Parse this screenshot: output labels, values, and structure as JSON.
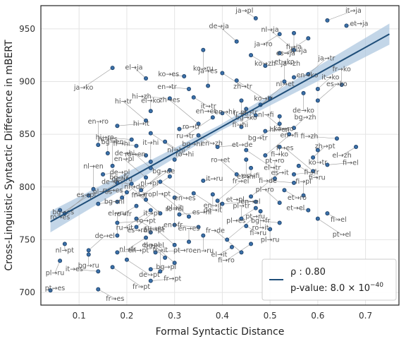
{
  "chart_data": {
    "type": "scatter",
    "xlabel": "Formal Syntactic Distance",
    "ylabel": "Cross-Linguistic Syntactic Difference in mBERT",
    "xlim": [
      0.02,
      0.77
    ],
    "ylim": [
      688,
      972
    ],
    "x_ticks": [
      0.1,
      0.2,
      0.3,
      0.4,
      0.5,
      0.6,
      0.7
    ],
    "x_tick_labels": [
      "0.1",
      "0.2",
      "0.3",
      "0.4",
      "0.5",
      "0.6",
      "0.7"
    ],
    "y_ticks": [
      700,
      750,
      800,
      850,
      900,
      950
    ],
    "y_tick_labels": [
      "700",
      "750",
      "800",
      "850",
      "900",
      "950"
    ],
    "grid": true,
    "legend": {
      "placement": "bottom-right",
      "line1": "ρ : 0.80",
      "line2_prefix": "p-value: 8.0 × 10",
      "line2_exp": "−40"
    },
    "colors": {
      "point_fill": "#3a6fa8",
      "point_edge": "#1b3d63",
      "fit_line": "#1f4e79",
      "confidence_band": "#a9c4de",
      "leader_line": "#9a9a9a",
      "grid": "#e4e4e4",
      "frame": "#222222"
    },
    "fit": {
      "x": [
        0.04,
        0.75
      ],
      "y": [
        767,
        945
      ]
    },
    "band_halfwidth": [
      10,
      3,
      10
    ],
    "points": [
      {
        "label": "ja→pl",
        "x": 0.47,
        "y": 960
      },
      {
        "label": "ja→ro",
        "x": 0.52,
        "y": 945
      },
      {
        "label": "fi→ja",
        "x": 0.55,
        "y": 946
      },
      {
        "label": "it→ja",
        "x": 0.62,
        "y": 958
      },
      {
        "label": "et→ja",
        "x": 0.66,
        "y": 953
      },
      {
        "label": "de→ja",
        "x": 0.43,
        "y": 938
      },
      {
        "label": "es→ja",
        "x": 0.58,
        "y": 941
      },
      {
        "label": "ko→ru",
        "x": 0.36,
        "y": 930
      },
      {
        "label": "ko→zh",
        "x": 0.46,
        "y": 925
      },
      {
        "label": "fr→ja",
        "x": 0.52,
        "y": 927
      },
      {
        "label": "nl→ja",
        "x": 0.55,
        "y": 930
      },
      {
        "label": "ja→ko",
        "x": 0.17,
        "y": 913
      },
      {
        "label": "ko→es",
        "x": 0.32,
        "y": 905
      },
      {
        "label": "zh→tr",
        "x": 0.4,
        "y": 908
      },
      {
        "label": "ja→zh",
        "x": 0.49,
        "y": 915
      },
      {
        "label": "el→ja",
        "x": 0.24,
        "y": 903
      },
      {
        "label": "ja→es",
        "x": 0.37,
        "y": 896
      },
      {
        "label": "en→tr",
        "x": 0.33,
        "y": 893
      },
      {
        "label": "ko→tr",
        "x": 0.43,
        "y": 901
      },
      {
        "label": "en→ko",
        "x": 0.55,
        "y": 904
      },
      {
        "label": "ja→tr",
        "x": 0.58,
        "y": 907
      },
      {
        "label": "et→ko",
        "x": 0.53,
        "y": 900
      },
      {
        "label": "hi→zh",
        "x": 0.29,
        "y": 884
      },
      {
        "label": "it→tr",
        "x": 0.34,
        "y": 885
      },
      {
        "label": "fr→tr",
        "x": 0.44,
        "y": 882
      },
      {
        "label": "nl→et",
        "x": 0.48,
        "y": 878
      },
      {
        "label": "el→ko",
        "x": 0.25,
        "y": 872
      },
      {
        "label": "en→et",
        "x": 0.4,
        "y": 870
      },
      {
        "label": "pl→tr",
        "x": 0.5,
        "y": 884
      },
      {
        "label": "de→ko",
        "x": 0.57,
        "y": 889
      },
      {
        "label": "it→ko",
        "x": 0.6,
        "y": 893
      },
      {
        "label": "fr→ko",
        "x": 0.65,
        "y": 897
      },
      {
        "label": "hi→tr",
        "x": 0.24,
        "y": 863
      },
      {
        "label": "ru→tr",
        "x": 0.38,
        "y": 866
      },
      {
        "label": "bg→ko",
        "x": 0.45,
        "y": 874
      },
      {
        "label": "es→ko",
        "x": 0.6,
        "y": 882
      },
      {
        "label": "hi→it",
        "x": 0.18,
        "y": 858
      },
      {
        "label": "zh→es",
        "x": 0.35,
        "y": 860
      },
      {
        "label": "fi→hi",
        "x": 0.47,
        "y": 868
      },
      {
        "label": "hi→en",
        "x": 0.52,
        "y": 867
      },
      {
        "label": "nl→hi",
        "x": 0.25,
        "y": 851
      },
      {
        "label": "ro→tr",
        "x": 0.31,
        "y": 855
      },
      {
        "label": "en→hi",
        "x": 0.44,
        "y": 857
      },
      {
        "label": "bg→tr",
        "x": 0.52,
        "y": 860
      },
      {
        "label": "hi→ro",
        "x": 0.21,
        "y": 845
      },
      {
        "label": "en→zh",
        "x": 0.35,
        "y": 849
      },
      {
        "label": "ko→ro",
        "x": 0.49,
        "y": 853
      },
      {
        "label": "nl→fi",
        "x": 0.54,
        "y": 850
      },
      {
        "label": "en→ro",
        "x": 0.14,
        "y": 840
      },
      {
        "label": "fr→hi",
        "x": 0.22,
        "y": 839
      },
      {
        "label": "ro→hi",
        "x": 0.28,
        "y": 843
      },
      {
        "label": "et→de",
        "x": 0.39,
        "y": 838
      },
      {
        "label": "bg→zh",
        "x": 0.55,
        "y": 856
      },
      {
        "label": "hi→es",
        "x": 0.16,
        "y": 832
      },
      {
        "label": "de→hi",
        "x": 0.24,
        "y": 830
      },
      {
        "label": "el→tr",
        "x": 0.45,
        "y": 835
      },
      {
        "label": "fi→ko",
        "x": 0.52,
        "y": 838
      },
      {
        "label": "bg→hi",
        "x": 0.3,
        "y": 826
      },
      {
        "label": "it→hi",
        "x": 0.25,
        "y": 824
      },
      {
        "label": "fi→zh",
        "x": 0.64,
        "y": 846
      },
      {
        "label": "el→zh",
        "x": 0.68,
        "y": 838
      },
      {
        "label": "ko→tr",
        "x": 0.6,
        "y": 835
      },
      {
        "label": "en→fi",
        "x": 0.49,
        "y": 830
      },
      {
        "label": "bg→en",
        "x": 0.17,
        "y": 820
      },
      {
        "label": "ro→en",
        "x": 0.25,
        "y": 818
      },
      {
        "label": "nl→pl",
        "x": 0.29,
        "y": 816
      },
      {
        "label": "et→hi",
        "x": 0.45,
        "y": 826
      },
      {
        "label": "zh→pt",
        "x": 0.59,
        "y": 828
      },
      {
        "label": "de→pl",
        "x": 0.15,
        "y": 812
      },
      {
        "label": "en→pl",
        "x": 0.24,
        "y": 809
      },
      {
        "label": "nl→ro",
        "x": 0.29,
        "y": 810
      },
      {
        "label": "es→fi",
        "x": 0.46,
        "y": 818
      },
      {
        "label": "fi→ru",
        "x": 0.56,
        "y": 820
      },
      {
        "label": "fi→el",
        "x": 0.62,
        "y": 821
      },
      {
        "label": "fi→es",
        "x": 0.59,
        "y": 815
      },
      {
        "label": "nl→es",
        "x": 0.18,
        "y": 804
      },
      {
        "label": "de→ro",
        "x": 0.21,
        "y": 803
      },
      {
        "label": "en→es",
        "x": 0.27,
        "y": 805
      },
      {
        "label": "it→ru",
        "x": 0.36,
        "y": 806
      },
      {
        "label": "ro→et",
        "x": 0.43,
        "y": 812
      },
      {
        "label": "pt→ro",
        "x": 0.51,
        "y": 808
      },
      {
        "label": "fi→de",
        "x": 0.55,
        "y": 804
      },
      {
        "label": "et→ro",
        "x": 0.53,
        "y": 797
      },
      {
        "label": "fi→fr",
        "x": 0.55,
        "y": 812
      },
      {
        "label": "bg→de",
        "x": 0.23,
        "y": 797
      },
      {
        "label": "nl→en",
        "x": 0.13,
        "y": 798
      },
      {
        "label": "ru→es",
        "x": 0.2,
        "y": 795
      },
      {
        "label": "en→it",
        "x": 0.34,
        "y": 794
      },
      {
        "label": "de→it",
        "x": 0.38,
        "y": 793
      },
      {
        "label": "es→it",
        "x": 0.46,
        "y": 791
      },
      {
        "label": "fi→pl",
        "x": 0.57,
        "y": 792
      },
      {
        "label": "et→pl",
        "x": 0.47,
        "y": 786
      },
      {
        "label": "bg→es",
        "x": 0.12,
        "y": 792
      },
      {
        "label": "ro→es",
        "x": 0.06,
        "y": 778
      },
      {
        "label": "nl→de",
        "x": 0.18,
        "y": 786
      },
      {
        "label": "de→ru",
        "x": 0.19,
        "y": 790
      },
      {
        "label": "bg→fr",
        "x": 0.24,
        "y": 788
      },
      {
        "label": "ro→fr",
        "x": 0.22,
        "y": 782
      },
      {
        "label": "ro→el",
        "x": 0.3,
        "y": 790
      },
      {
        "label": "fr→el",
        "x": 0.39,
        "y": 787
      },
      {
        "label": "en→el",
        "x": 0.4,
        "y": 784
      },
      {
        "label": "pl→ro",
        "x": 0.52,
        "y": 785
      },
      {
        "label": "pl→es",
        "x": 0.47,
        "y": 780
      },
      {
        "label": "ro→it",
        "x": 0.48,
        "y": 777
      },
      {
        "label": "fi→el",
        "x": 0.62,
        "y": 775
      },
      {
        "label": "bg→nl",
        "x": 0.14,
        "y": 784
      },
      {
        "label": "fr→it",
        "x": 0.27,
        "y": 775
      },
      {
        "label": "ru→it",
        "x": 0.25,
        "y": 778
      },
      {
        "label": "et→el",
        "x": 0.58,
        "y": 778
      },
      {
        "label": "bg→pt",
        "x": 0.22,
        "y": 770
      },
      {
        "label": "es→nl",
        "x": 0.31,
        "y": 774
      },
      {
        "label": "pl→pt",
        "x": 0.33,
        "y": 772
      },
      {
        "label": "pl→tr",
        "x": 0.44,
        "y": 770
      },
      {
        "label": "bg→fr",
        "x": 0.52,
        "y": 766
      },
      {
        "label": "pt→el",
        "x": 0.6,
        "y": 770
      },
      {
        "label": "ro→pt",
        "x": 0.18,
        "y": 766
      },
      {
        "label": "it→pt",
        "x": 0.22,
        "y": 762
      },
      {
        "label": "pl→it",
        "x": 0.3,
        "y": 764
      },
      {
        "label": "en→fr",
        "x": 0.35,
        "y": 762
      },
      {
        "label": "fi→ru",
        "x": 0.45,
        "y": 763
      },
      {
        "label": "pl→ru",
        "x": 0.5,
        "y": 760
      },
      {
        "label": "es→pt",
        "x": 0.07,
        "y": 775
      },
      {
        "label": "el→ru",
        "x": 0.18,
        "y": 754
      },
      {
        "label": "es→ru",
        "x": 0.25,
        "y": 757
      },
      {
        "label": "nl→fr",
        "x": 0.24,
        "y": 752
      },
      {
        "label": "en→ru",
        "x": 0.36,
        "y": 754
      },
      {
        "label": "pt→ru",
        "x": 0.41,
        "y": 750
      },
      {
        "label": "en→es",
        "x": 0.33,
        "y": 748
      },
      {
        "label": "ru→es",
        "x": 0.3,
        "y": 745
      },
      {
        "label": "fi→ro",
        "x": 0.46,
        "y": 746
      },
      {
        "label": "nl→pt",
        "x": 0.07,
        "y": 746
      },
      {
        "label": "de→el",
        "x": 0.12,
        "y": 740
      },
      {
        "label": "en→pt",
        "x": 0.18,
        "y": 738
      },
      {
        "label": "fr→de",
        "x": 0.44,
        "y": 738
      },
      {
        "label": "el→it",
        "x": 0.42,
        "y": 743
      },
      {
        "label": "bg→ru",
        "x": 0.12,
        "y": 736
      },
      {
        "label": "de→pt",
        "x": 0.2,
        "y": 731
      },
      {
        "label": "pt→ro",
        "x": 0.26,
        "y": 738
      },
      {
        "label": "el→pl",
        "x": 0.28,
        "y": 733
      },
      {
        "label": "pl→ru",
        "x": 0.06,
        "y": 730
      },
      {
        "label": "it→es",
        "x": 0.14,
        "y": 720
      },
      {
        "label": "fr→pt",
        "x": 0.17,
        "y": 724
      },
      {
        "label": "bg→pl",
        "x": 0.25,
        "y": 722
      },
      {
        "label": "bg→el",
        "x": 0.3,
        "y": 728
      },
      {
        "label": "fr→it",
        "x": 0.27,
        "y": 720
      },
      {
        "label": "pt→es",
        "x": 0.04,
        "y": 702
      },
      {
        "label": "fr→es",
        "x": 0.14,
        "y": 703
      },
      {
        "label": "fr→pt",
        "x": 0.25,
        "y": 711
      }
    ]
  }
}
